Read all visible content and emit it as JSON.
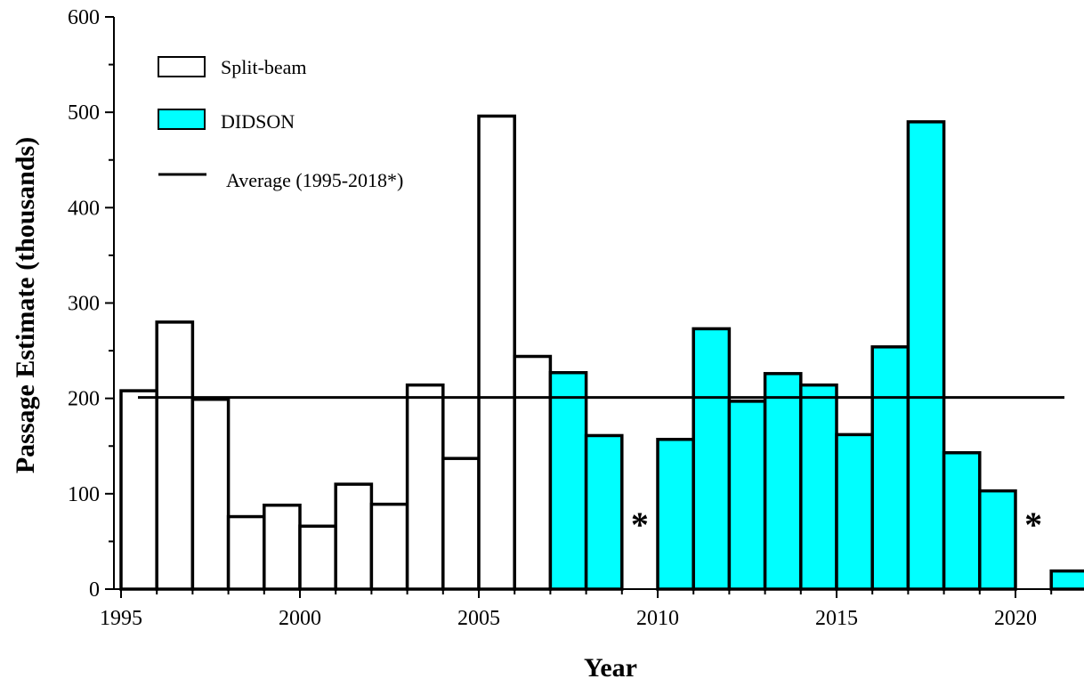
{
  "chart_data": {
    "type": "bar",
    "title": "",
    "xlabel": "Year",
    "ylabel": "Passage Estimate (thousands)",
    "ylim": [
      0,
      600
    ],
    "yticks": [
      0,
      100,
      200,
      300,
      400,
      500,
      600
    ],
    "xticks": [
      1995,
      2000,
      2005,
      2010,
      2015,
      2020
    ],
    "x": [
      1995,
      1996,
      1997,
      1998,
      1999,
      2000,
      2001,
      2002,
      2003,
      2004,
      2005,
      2006,
      2007,
      2008,
      2009,
      2010,
      2011,
      2012,
      2013,
      2014,
      2015,
      2016,
      2017,
      2018,
      2019,
      2020,
      2021
    ],
    "series": [
      {
        "name": "Split-beam",
        "color": "#ffffff",
        "values": [
          208,
          280,
          199,
          76,
          88,
          66,
          110,
          89,
          214,
          137,
          496,
          244,
          null,
          null,
          null,
          null,
          null,
          null,
          null,
          null,
          null,
          null,
          null,
          null,
          null,
          null,
          null
        ]
      },
      {
        "name": "DIDSON",
        "color": "#00ffff",
        "values": [
          null,
          null,
          null,
          null,
          null,
          null,
          null,
          null,
          null,
          null,
          null,
          null,
          227,
          161,
          null,
          157,
          273,
          197,
          226,
          214,
          162,
          254,
          490,
          143,
          103,
          null,
          19
        ]
      }
    ],
    "average": {
      "name": "Average (1995-2018*)",
      "value": 201
    },
    "missing_marker": "*",
    "missing_years": [
      2009,
      2020
    ],
    "legend": "top-left",
    "grid": false
  }
}
